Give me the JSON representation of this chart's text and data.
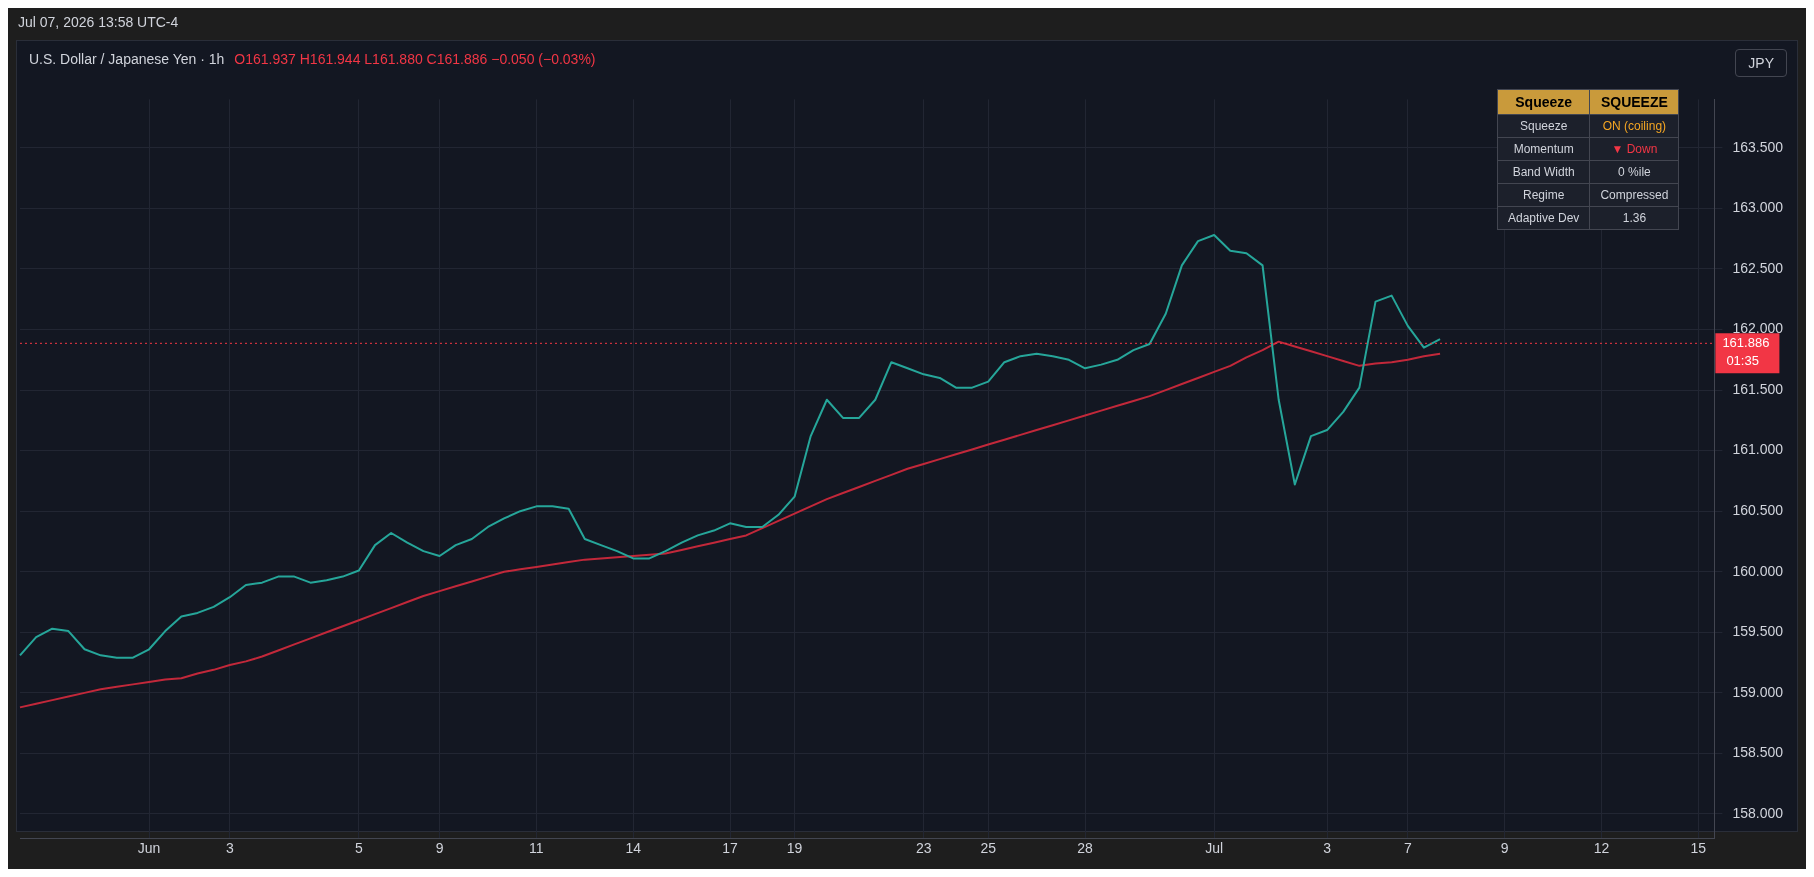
{
  "chart_data": {
    "type": "line",
    "title": "U.S. Dollar / Japanese Yen · 1h",
    "ylabel": "JPY",
    "annotations": [
      "Jul 07, 2026 13:58 UTC-4",
      "O161.937 H161.944 L161.880 C161.886 −0.050 (−0.03%)",
      "01:35",
      "Squeeze",
      "SQUEEZE",
      "Squeeze",
      "ON (coiling)",
      "Momentum",
      "▼ Down",
      "Band Width",
      "0 %ile",
      "Regime",
      "Compressed",
      "Adaptive Dev",
      "1.36"
    ],
    "categories": [
      null,
      null,
      null,
      null,
      null,
      null,
      null,
      null,
      "Jun",
      null,
      null,
      null,
      null,
      "3",
      null,
      null,
      null,
      null,
      null,
      null,
      null,
      "5",
      null,
      null,
      null,
      null,
      "9",
      null,
      null,
      null,
      null,
      null,
      "11",
      null,
      null,
      null,
      null,
      null,
      "14",
      null,
      null,
      null,
      null,
      null,
      "17",
      null,
      null,
      null,
      "19",
      null,
      null,
      null,
      null,
      null,
      null,
      null,
      "23",
      null,
      null,
      null,
      "25",
      null,
      null,
      null,
      null,
      null,
      "28",
      null,
      null,
      null,
      null,
      null,
      null,
      null,
      "Jul",
      null,
      null,
      null,
      null,
      null,
      null,
      "3",
      null,
      null,
      null,
      null,
      "7",
      null,
      null,
      null,
      null,
      null,
      "9",
      null,
      null,
      null,
      null,
      null,
      "12",
      null,
      null,
      null,
      null,
      null,
      "15",
      null
    ],
    "ylim": [
      157.8,
      163.9
    ],
    "yticks": [
      {
        "value": 158,
        "label": "158.000"
      },
      {
        "value": 158.5,
        "label": "158.500"
      },
      {
        "value": 159,
        "label": "159.000"
      },
      {
        "value": 159.5,
        "label": "159.500"
      },
      {
        "value": 160,
        "label": "160.000"
      },
      {
        "value": 160.5,
        "label": "160.500"
      },
      {
        "value": 161,
        "label": "161.000"
      },
      {
        "value": 161.5,
        "label": "161.500"
      },
      {
        "value": 162,
        "label": "162.000"
      },
      {
        "value": 162.5,
        "label": "162.500"
      },
      {
        "value": 163,
        "label": "163.000"
      },
      {
        "value": 163.5,
        "label": "163.500"
      }
    ],
    "grid": true,
    "legend": false,
    "series": [
      {
        "color": "#26a69a",
        "values": [
          159.31,
          159.46,
          159.53,
          159.51,
          159.36,
          159.31,
          159.29,
          159.29,
          159.36,
          159.51,
          159.63,
          159.66,
          159.71,
          159.79,
          159.89,
          159.91,
          159.96,
          159.96,
          159.91,
          159.93,
          159.96,
          160.01,
          160.22,
          160.32,
          160.24,
          160.17,
          160.13,
          160.22,
          160.27,
          160.37,
          160.44,
          160.5,
          160.54,
          160.54,
          160.52,
          160.27,
          160.22,
          160.17,
          160.11,
          160.11,
          160.17,
          160.24,
          160.3,
          160.34,
          160.4,
          160.37,
          160.37,
          160.47,
          160.62,
          161.12,
          161.42,
          161.27,
          161.27,
          161.42,
          161.73,
          161.68,
          161.63,
          161.6,
          161.52,
          161.52,
          161.57,
          161.73,
          161.78,
          161.8,
          161.78,
          161.75,
          161.68,
          161.71,
          161.75,
          161.83,
          161.88,
          162.13,
          162.53,
          162.73,
          162.78,
          162.65,
          162.63,
          162.53,
          161.42,
          160.72,
          161.12,
          161.17,
          161.32,
          161.52,
          162.23,
          162.28,
          162.03,
          161.85,
          161.92,
          null,
          null,
          null,
          null,
          null,
          null,
          null,
          null,
          null,
          null,
          null,
          null,
          null,
          null,
          null,
          null,
          null
        ]
      },
      {
        "color": "#c2283a",
        "values": [
          158.88,
          158.91,
          158.94,
          158.97,
          159.0,
          159.03,
          159.05,
          159.07,
          159.09,
          159.11,
          159.12,
          159.16,
          159.19,
          159.23,
          159.26,
          159.3,
          159.35,
          159.4,
          159.45,
          159.5,
          159.55,
          159.6,
          159.65,
          159.7,
          159.75,
          159.8,
          159.84,
          159.88,
          159.92,
          159.96,
          160.0,
          160.02,
          160.04,
          160.06,
          160.08,
          160.1,
          160.11,
          160.12,
          160.13,
          160.14,
          160.15,
          160.18,
          160.21,
          160.24,
          160.27,
          160.3,
          160.36,
          160.42,
          160.48,
          160.54,
          160.6,
          160.65,
          160.7,
          160.75,
          160.8,
          160.85,
          160.89,
          160.93,
          160.97,
          161.01,
          161.05,
          161.09,
          161.13,
          161.17,
          161.21,
          161.25,
          161.29,
          161.33,
          161.37,
          161.41,
          161.45,
          161.5,
          161.55,
          161.6,
          161.65,
          161.7,
          161.77,
          161.83,
          161.9,
          161.86,
          161.82,
          161.78,
          161.74,
          161.7,
          161.72,
          161.73,
          161.75,
          161.78,
          161.8,
          null,
          null,
          null,
          null,
          null,
          null,
          null,
          null,
          null,
          null,
          null,
          null,
          null,
          null,
          null,
          null,
          null
        ]
      }
    ],
    "ref_lines": [
      {
        "axis": "y",
        "value": 161.886,
        "label": "161.886",
        "color": "#f23645",
        "line_style": "dotted"
      }
    ]
  }
}
